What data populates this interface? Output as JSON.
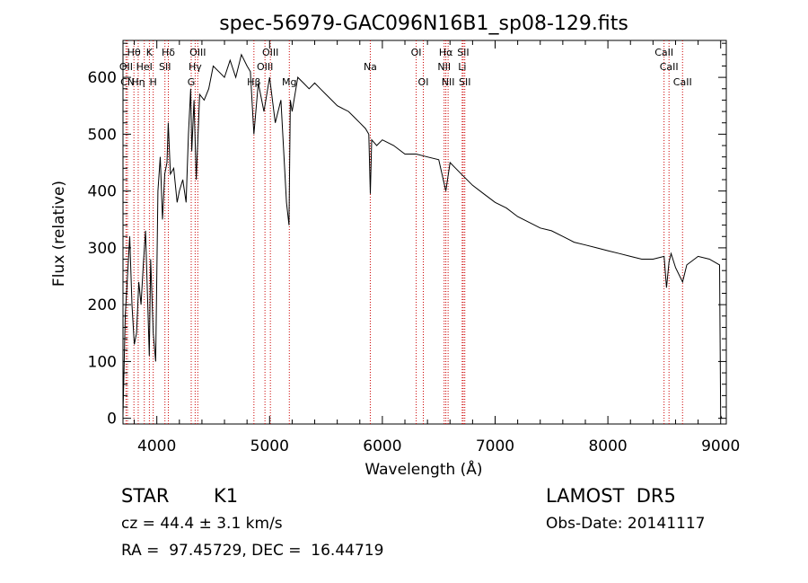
{
  "chart_data": {
    "type": "line",
    "title": "spec-56979-GAC096N16B1_sp08-129.fits",
    "xlabel": "Wavelength (Å)",
    "ylabel": "Flux (relative)",
    "xlim": [
      3700,
      9050
    ],
    "ylim": [
      -10,
      665
    ],
    "xticks": [
      4000,
      5000,
      6000,
      7000,
      8000,
      9000
    ],
    "yticks": [
      0,
      100,
      200,
      300,
      400,
      500,
      600
    ],
    "grid": false,
    "series": [
      {
        "x": [
          3700,
          3720,
          3740,
          3760,
          3780,
          3800,
          3820,
          3840,
          3860,
          3880,
          3900,
          3920,
          3933,
          3945,
          3968,
          3990,
          4010,
          4030,
          4050,
          4070,
          4090,
          4101,
          4120,
          4150,
          4180,
          4200,
          4230,
          4260,
          4280,
          4300,
          4310,
          4330,
          4350,
          4380,
          4420,
          4460,
          4500,
          4550,
          4600,
          4650,
          4700,
          4750,
          4800,
          4830,
          4861,
          4900,
          4950,
          5000,
          5050,
          5100,
          5150,
          5172,
          5184,
          5200,
          5250,
          5300,
          5350,
          5400,
          5450,
          5500,
          5550,
          5600,
          5650,
          5700,
          5750,
          5800,
          5850,
          5880,
          5893,
          5905,
          5950,
          6000,
          6100,
          6200,
          6300,
          6400,
          6500,
          6563,
          6600,
          6650,
          6700,
          6800,
          6900,
          7000,
          7100,
          7200,
          7300,
          7400,
          7500,
          7600,
          7700,
          7800,
          7900,
          8000,
          8100,
          8200,
          8300,
          8400,
          8498,
          8520,
          8542,
          8560,
          8600,
          8662,
          8700,
          8800,
          8900,
          8990,
          9000,
          9010
        ],
        "y": [
          5,
          180,
          250,
          320,
          200,
          130,
          150,
          240,
          200,
          270,
          330,
          200,
          110,
          280,
          150,
          100,
          400,
          460,
          350,
          430,
          450,
          520,
          430,
          440,
          380,
          400,
          420,
          380,
          500,
          580,
          470,
          560,
          420,
          570,
          560,
          580,
          620,
          610,
          600,
          630,
          600,
          640,
          620,
          610,
          500,
          590,
          540,
          600,
          520,
          560,
          380,
          340,
          560,
          540,
          600,
          590,
          580,
          590,
          580,
          570,
          560,
          550,
          545,
          540,
          530,
          520,
          510,
          500,
          395,
          490,
          480,
          490,
          480,
          465,
          465,
          460,
          455,
          400,
          450,
          440,
          430,
          410,
          395,
          380,
          370,
          355,
          345,
          335,
          330,
          320,
          310,
          305,
          300,
          295,
          290,
          285,
          280,
          280,
          285,
          230,
          275,
          290,
          265,
          240,
          270,
          285,
          280,
          270,
          5,
          0
        ]
      }
    ],
    "spectral_lines": [
      {
        "label": "Hθ",
        "x": 3797,
        "row": 1
      },
      {
        "label": "K",
        "x": 3934,
        "row": 1
      },
      {
        "label": "Hδ",
        "x": 4102,
        "row": 1
      },
      {
        "label": "OIII",
        "x": 4363,
        "row": 1
      },
      {
        "label": "OIII",
        "x": 5007,
        "row": 1
      },
      {
        "label": "OI",
        "x": 6300,
        "row": 1
      },
      {
        "label": "Hα",
        "x": 6563,
        "row": 1
      },
      {
        "label": "SII",
        "x": 6717,
        "row": 1
      },
      {
        "label": "CaII",
        "x": 8498,
        "row": 1
      },
      {
        "label": "OII",
        "x": 3727,
        "row": 2
      },
      {
        "label": "HeI",
        "x": 3889,
        "row": 2
      },
      {
        "label": "SII",
        "x": 4072,
        "row": 2
      },
      {
        "label": "Hγ",
        "x": 4340,
        "row": 2
      },
      {
        "label": "OIII",
        "x": 4959,
        "row": 2
      },
      {
        "label": "NII",
        "x": 6548,
        "row": 2
      },
      {
        "label": "Li",
        "x": 6708,
        "row": 2
      },
      {
        "label": "CaII",
        "x": 8542,
        "row": 2
      },
      {
        "label": "CN",
        "x": 3740,
        "row": 3
      },
      {
        "label": "Hη",
        "x": 3835,
        "row": 3
      },
      {
        "label": "H",
        "x": 3968,
        "row": 3
      },
      {
        "label": "G",
        "x": 4305,
        "row": 3
      },
      {
        "label": "Hβ",
        "x": 4861,
        "row": 3
      },
      {
        "label": "Mg",
        "x": 5175,
        "row": 3
      },
      {
        "label": "Na",
        "x": 5893,
        "row": 2
      },
      {
        "label": "OI",
        "x": 6363,
        "row": 3
      },
      {
        "label": "NII",
        "x": 6583,
        "row": 3
      },
      {
        "label": "SII",
        "x": 6731,
        "row": 3
      },
      {
        "label": "CaII",
        "x": 8662,
        "row": 3
      }
    ]
  },
  "info": {
    "class_label": "STAR",
    "subclass": "K1",
    "survey": "LAMOST  DR5",
    "cz": "cz = 44.4 ± 3.1 km/s",
    "obs_date": "Obs-Date: 20141117",
    "coords": "RA =  97.45729, DEC =  16.44719"
  }
}
